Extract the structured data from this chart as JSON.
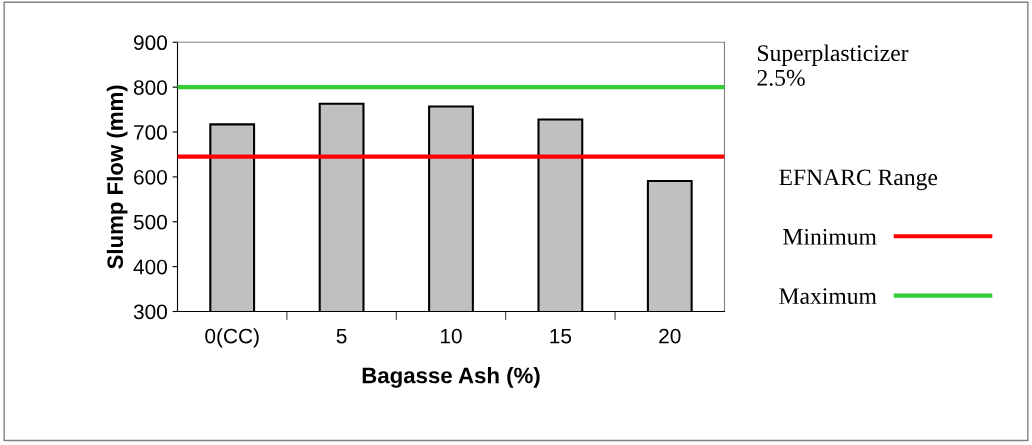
{
  "chart_data": {
    "type": "bar",
    "xlabel": "Bagasse Ash (%)",
    "ylabel": "Slump Flow (mm)",
    "categories": [
      "0(CC)",
      "5",
      "10",
      "15",
      "20"
    ],
    "values": [
      717,
      763,
      757,
      728,
      591
    ],
    "color": "#c0c0c0",
    "ylim": [
      300,
      900
    ],
    "yticks": [
      300,
      400,
      500,
      600,
      700,
      800,
      900
    ],
    "grid": false,
    "legend": "right",
    "legend_title": "EFNARC Range",
    "ref_lines": [
      {
        "axis": "y",
        "value": 645,
        "label": "Minimum",
        "color": "#ff0000"
      },
      {
        "axis": "y",
        "value": 800,
        "label": "Maximum",
        "color": "#33cc33"
      }
    ],
    "annotations": [
      "Superplasticizer\n2.5%"
    ]
  }
}
